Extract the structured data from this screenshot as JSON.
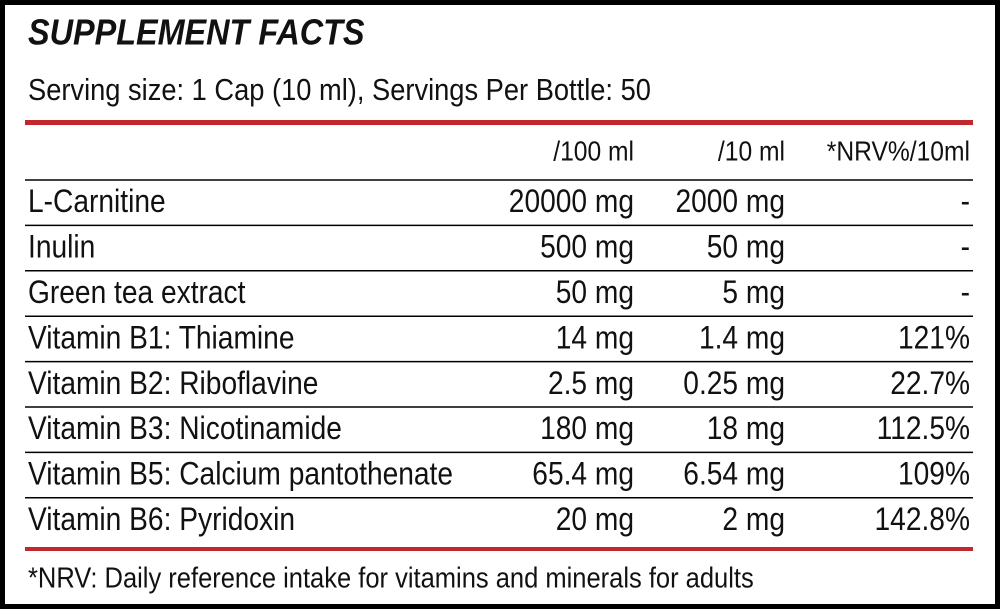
{
  "header": {
    "title": "SUPPLEMENT FACTS",
    "serving": "Serving size: 1 Cap (10 ml), Servings Per Bottle: 50"
  },
  "table": {
    "columns": [
      "/100 ml",
      "/10 ml",
      "*NRV%/10ml"
    ],
    "rows": [
      [
        "L-Carnitine",
        "20000 mg",
        "2000 mg",
        "-"
      ],
      [
        "Inulin",
        "500 mg",
        "50 mg",
        "-"
      ],
      [
        "Green tea extract",
        "50 mg",
        "5 mg",
        "-"
      ],
      [
        "Vitamin B1: Thiamine",
        "14 mg",
        "1.4 mg",
        "121%"
      ],
      [
        "Vitamin B2: Riboflavine",
        "2.5 mg",
        "0.25 mg",
        "22.7%"
      ],
      [
        "Vitamin B3: Nicotinamide",
        "180 mg",
        "18 mg",
        "112.5%"
      ],
      [
        "Vitamin B5: Calcium pantothenate",
        "65.4 mg",
        "6.54 mg",
        "109%"
      ],
      [
        "Vitamin B6: Pyridoxin",
        "20 mg",
        "2 mg",
        "142.8%"
      ]
    ]
  },
  "footer": {
    "note": "*NRV: Daily reference intake for vitamins and minerals for adults"
  }
}
